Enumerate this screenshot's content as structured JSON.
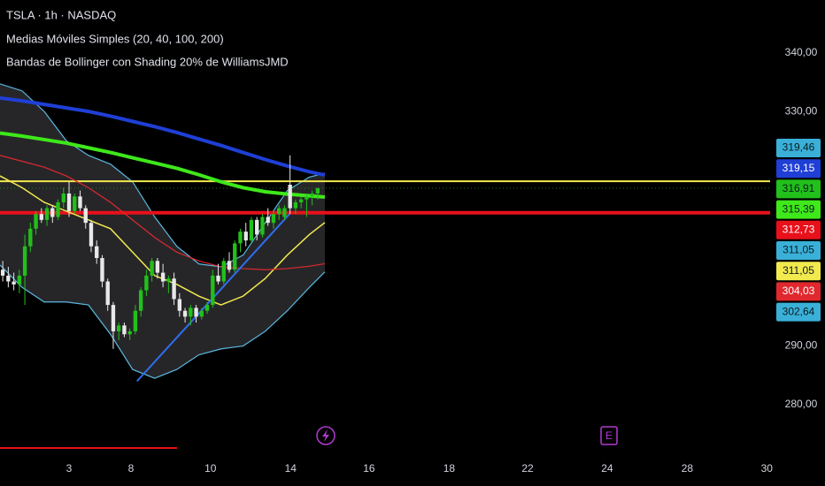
{
  "chart_data": {
    "type": "candlestick",
    "title": "TSLA · 1h · NASDAQ",
    "subtitles": [
      "Medias Móviles Simples (20, 40, 100, 200)",
      "Bandas de Bollinger con Shading 20% de WilliamsJMD"
    ],
    "ylim": [
      272,
      349
    ],
    "yticks": [
      {
        "value": 340,
        "label": "340,00"
      },
      {
        "value": 330,
        "label": "330,00"
      },
      {
        "value": 290,
        "label": "290,00"
      },
      {
        "value": 280,
        "label": "280,00"
      }
    ],
    "xlim": [
      0,
      145
    ],
    "xticks": [
      {
        "value": 12.5,
        "label": "3"
      },
      {
        "value": 23.7,
        "label": "8"
      },
      {
        "value": 38.1,
        "label": "10"
      },
      {
        "value": 52.6,
        "label": "14"
      },
      {
        "value": 66.8,
        "label": "16"
      },
      {
        "value": 81.3,
        "label": "18"
      },
      {
        "value": 95.5,
        "label": "22"
      },
      {
        "value": 109.9,
        "label": "24"
      },
      {
        "value": 124.4,
        "label": "28"
      },
      {
        "value": 138.8,
        "label": "30"
      }
    ],
    "up_color": "#22c01a",
    "down_color": "#e8e8e8",
    "candles": {
      "open": [
        303,
        302,
        301,
        300.5,
        302,
        307,
        310,
        312.5,
        311.5,
        313.5,
        312,
        314.5,
        316,
        313,
        315.5,
        313.5,
        311,
        307,
        305,
        301,
        297,
        292.5,
        293.5,
        292,
        292.5,
        296,
        299.5,
        302,
        304.5,
        302.5,
        301,
        301.5,
        298,
        296,
        295,
        296.5,
        295,
        296,
        297,
        302,
        301,
        304.5,
        303,
        307.5,
        309.5,
        308,
        311.5,
        309,
        312,
        311,
        312.5,
        312,
        317.5,
        313.5,
        314.5,
        315,
        315.5,
        316
      ],
      "high": [
        304.5,
        303.5,
        302.5,
        303,
        309,
        311,
        313,
        313.5,
        314,
        314,
        315,
        317,
        318,
        316,
        316.5,
        314,
        311.5,
        308,
        305.5,
        301.5,
        297.5,
        294,
        294,
        293,
        297,
        300,
        303,
        305,
        305,
        304,
        302,
        302.5,
        299,
        296.5,
        297,
        297,
        296.5,
        297.5,
        303,
        304,
        305,
        306,
        308,
        310,
        311,
        312,
        312,
        312.5,
        313.5,
        313,
        314,
        314,
        322.5,
        315,
        315.5,
        316,
        316.5,
        317
      ],
      "low": [
        301,
        300,
        299.5,
        299,
        297,
        306,
        309,
        311,
        310.5,
        311,
        311.5,
        313.5,
        312,
        312.5,
        313,
        310,
        306,
        304,
        300,
        296,
        289.5,
        291,
        291.5,
        291,
        292,
        295,
        298.5,
        301,
        301.5,
        300,
        299,
        297,
        295,
        294,
        293.5,
        294,
        294.5,
        295.5,
        296.5,
        300.5,
        300.5,
        302.5,
        302.5,
        306,
        307,
        307.5,
        308,
        308.5,
        310.5,
        310,
        311.5,
        311.5,
        312.5,
        312.5,
        313.5,
        312,
        314,
        315
      ],
      "close": [
        302,
        301,
        300.5,
        302,
        307,
        310,
        312.5,
        311.5,
        313.5,
        312,
        314.5,
        316,
        313,
        315.5,
        313.5,
        311,
        307,
        305,
        301,
        297,
        292.5,
        293.5,
        292,
        292.5,
        296,
        299.5,
        302,
        304.5,
        302.5,
        301,
        301.5,
        298,
        296,
        295,
        296.5,
        295,
        296,
        297,
        302,
        301,
        304.5,
        303,
        307.5,
        309.5,
        308,
        311.5,
        309,
        312,
        311,
        312.5,
        313.5,
        313.5,
        313.5,
        314.5,
        315,
        315.5,
        316,
        316.91
      ],
      "last_label": "316,91",
      "last_color": "#22c01a"
    },
    "bands": {
      "x": [
        0,
        4,
        8,
        12,
        16,
        20,
        24,
        28,
        32,
        36,
        40,
        44,
        48,
        52,
        56,
        58.8
      ],
      "upper": [
        334.7,
        333.5,
        330,
        325,
        322.5,
        321,
        318,
        312,
        307,
        304,
        303.5,
        305.5,
        311,
        316.5,
        318.8,
        319.46
      ],
      "lower": [
        303.8,
        300,
        297.5,
        297.5,
        297,
        292,
        286,
        284.5,
        286,
        288.5,
        289.5,
        290,
        292.5,
        296,
        300,
        302.64
      ],
      "color": "#5bb8e0",
      "fill": "#2a2a2e",
      "upper_label": "319,46",
      "lower_label": "302,64",
      "basis_label": "311,05"
    },
    "lines": [
      {
        "color": "#f2e94e",
        "width": 1.5,
        "x": [
          0,
          4,
          8,
          12,
          16,
          20,
          24,
          28,
          32,
          36,
          40,
          44,
          48,
          52,
          56,
          58.8
        ],
        "values": [
          319,
          317,
          314.5,
          313,
          311.5,
          310,
          306,
          302,
          300.5,
          298.5,
          297,
          298.5,
          301.5,
          305.5,
          309,
          311.05
        ],
        "end_label": "311,05"
      },
      {
        "color": "#e0282e",
        "width": 1.2,
        "x": [
          0,
          4,
          8,
          12,
          16,
          20,
          24,
          28,
          32,
          36,
          40,
          44,
          48,
          52,
          56,
          58.8
        ],
        "values": [
          322.5,
          321.5,
          320.5,
          319,
          317,
          314.5,
          311.5,
          308.5,
          306,
          304.5,
          303.5,
          303.2,
          303,
          303.2,
          303.6,
          304.03
        ],
        "end_label": "304,03"
      },
      {
        "color": "#3ee81a",
        "width": 4,
        "x": [
          0,
          4,
          8,
          12,
          16,
          20,
          24,
          28,
          32,
          36,
          40,
          44,
          48,
          52,
          56,
          58.8
        ],
        "values": [
          326.3,
          325.8,
          325.2,
          324.6,
          323.8,
          323,
          322.1,
          321.2,
          320.3,
          319.2,
          318,
          317,
          316.3,
          315.9,
          315.6,
          315.39
        ],
        "end_label": "315,39"
      },
      {
        "color": "#1f3fd6",
        "width": 4,
        "x": [
          0,
          4,
          8,
          12,
          16,
          20,
          24,
          28,
          32,
          36,
          40,
          44,
          48,
          52,
          56,
          58.8
        ],
        "values": [
          332.3,
          331.8,
          331.2,
          330.6,
          330,
          329.2,
          328.3,
          327.4,
          326.4,
          325.3,
          324.2,
          323,
          321.8,
          320.7,
          319.7,
          319.15
        ],
        "end_label": "319,15"
      }
    ],
    "trendlines": [
      {
        "color": "#2f6ff0",
        "x": [
          24.8,
          52.4
        ],
        "values": [
          284,
          312.5
        ]
      }
    ],
    "hlines": [
      {
        "value": 318.1,
        "color": "#f2e94e",
        "width": 2
      },
      {
        "value": 312.73,
        "color": "#e8101a",
        "width": 4,
        "label": "312,73"
      }
    ],
    "label_colors": {
      "bands": "#3ab0d8",
      "band_text": "#0b1a20",
      "dark_text": "#0b1a20",
      "light_text": "#ffffff"
    },
    "events": [
      "E"
    ]
  }
}
